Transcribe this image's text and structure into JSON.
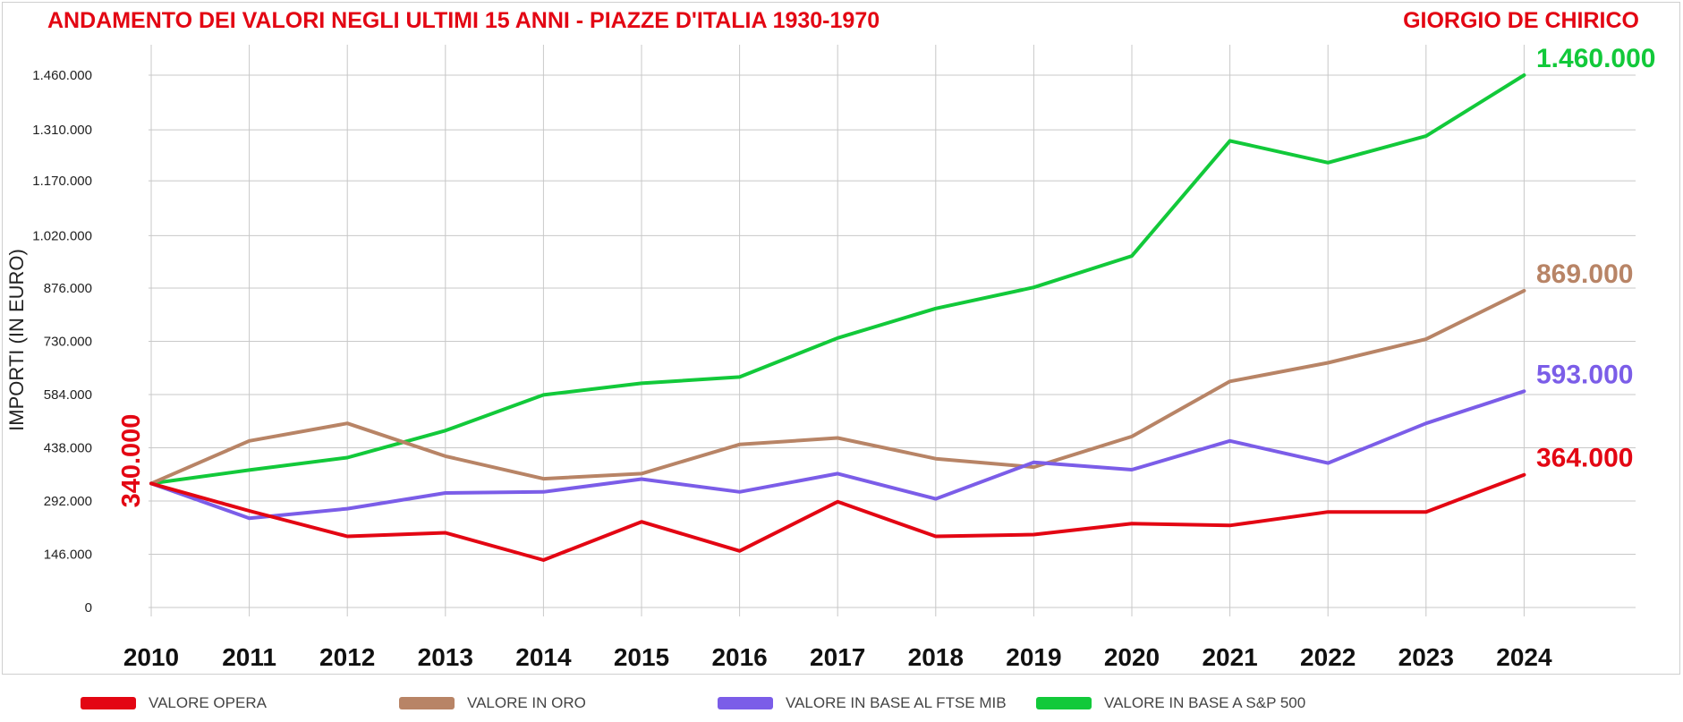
{
  "chart_data": {
    "type": "line",
    "title": "ANDAMENTO DEI VALORI NEGLI ULTIMI 15 ANNI - PIAZZE D'ITALIA 1930-1970",
    "subtitle": "GIORGIO DE CHIRICO",
    "ylabel": "IMPORTI (IN EURO)",
    "xlabel": "",
    "x": [
      "2010",
      "2011",
      "2012",
      "2013",
      "2014",
      "2015",
      "2016",
      "2017",
      "2018",
      "2019",
      "2020",
      "2021",
      "2022",
      "2023",
      "2024"
    ],
    "y_ticks": [
      0,
      146000,
      292000,
      438000,
      584000,
      730000,
      876000,
      1020000,
      1170000,
      1310000,
      1460000
    ],
    "y_tick_labels": [
      "0",
      "146.000",
      "292.000",
      "438.000",
      "584.000",
      "730.000",
      "876.000",
      "1.020.000",
      "1.170.000",
      "1.310.000",
      "1.460.000"
    ],
    "ylim": [
      0,
      1460000
    ],
    "grid": true,
    "legend_position": "bottom",
    "start_label": "340.000",
    "series": [
      {
        "name": "VALORE OPERA",
        "color": "#e30613",
        "end_label": "364.000",
        "values": [
          340000,
          265000,
          195000,
          205000,
          130000,
          235000,
          155000,
          290000,
          195000,
          200000,
          230000,
          225000,
          262000,
          262000,
          364000
        ]
      },
      {
        "name": "VALORE IN ORO",
        "color": "#b88466",
        "end_label": "869.000",
        "values": [
          340000,
          457000,
          505000,
          415000,
          353000,
          367000,
          447000,
          465000,
          408000,
          385000,
          469000,
          620000,
          671000,
          736000,
          869000
        ]
      },
      {
        "name": "VALORE IN BASE AL FTSE MIB",
        "color": "#7b5de8",
        "end_label": "593.000",
        "values": [
          340000,
          245000,
          271000,
          314000,
          317000,
          352000,
          317000,
          367000,
          298000,
          398000,
          378000,
          457000,
          396000,
          505000,
          593000
        ]
      },
      {
        "name": "VALORE IN BASE A S&P 500",
        "color": "#12c93a",
        "end_label": "1.460.000",
        "values": [
          340000,
          377000,
          411000,
          485000,
          583000,
          615000,
          632000,
          739000,
          820000,
          878000,
          964000,
          1280000,
          1220000,
          1293000,
          1460000
        ]
      }
    ]
  }
}
